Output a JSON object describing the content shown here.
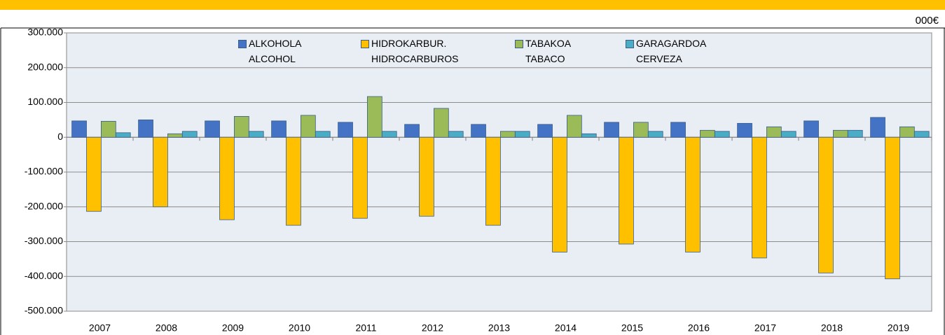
{
  "chart_data": {
    "type": "bar",
    "unit": "000€",
    "categories": [
      "2007",
      "2008",
      "2009",
      "2010",
      "2011",
      "2012",
      "2013",
      "2014",
      "2015",
      "2016",
      "2017",
      "2018",
      "2019"
    ],
    "series": [
      {
        "name": "ALKOHOLA\nALCOHOL",
        "color": "#4472c4",
        "values": [
          47000,
          50000,
          47000,
          47000,
          43000,
          37000,
          37000,
          37000,
          43000,
          43000,
          40000,
          47000,
          57000
        ]
      },
      {
        "name": "HIDROKARBUR.\nHIDROCARBUROS",
        "color": "#ffc000",
        "values": [
          -213000,
          -200000,
          -237000,
          -253000,
          -233000,
          -227000,
          -253000,
          -330000,
          -307000,
          -330000,
          -347000,
          -390000,
          -407000
        ]
      },
      {
        "name": "TABAKOA\nTABACO",
        "color": "#9bbb59",
        "values": [
          46000,
          10000,
          60000,
          63000,
          117000,
          83000,
          17000,
          63000,
          43000,
          20000,
          30000,
          20000,
          30000
        ]
      },
      {
        "name": "GARAGARDOA\nCERVEZA",
        "color": "#4bacc6",
        "values": [
          13000,
          17000,
          17000,
          17000,
          17000,
          17000,
          17000,
          10000,
          17000,
          17000,
          17000,
          20000,
          17000
        ]
      }
    ],
    "ylim": [
      -500000,
      300000
    ],
    "yticks": [
      {
        "value": -500000,
        "label": "-500.000"
      },
      {
        "value": -400000,
        "label": "-400.000"
      },
      {
        "value": -300000,
        "label": "-300.000"
      },
      {
        "value": -200000,
        "label": "-200.000"
      },
      {
        "value": -100000,
        "label": "-100.000"
      },
      0,
      {
        "value": 100000,
        "label": "100.000"
      },
      {
        "value": 200000,
        "label": "200.000"
      },
      {
        "value": 300000,
        "label": "300.000"
      }
    ],
    "grid": true,
    "legend": "top"
  }
}
